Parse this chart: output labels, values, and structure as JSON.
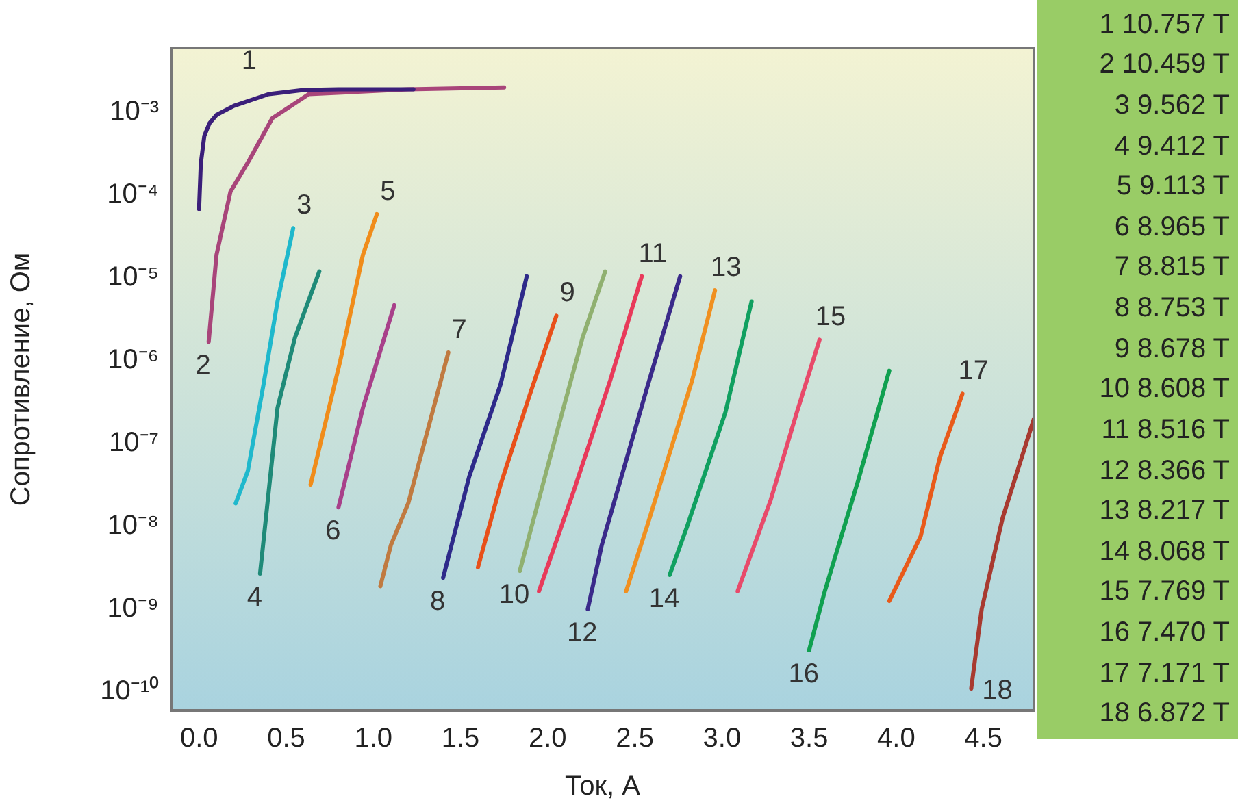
{
  "chart_data": {
    "type": "line",
    "xlabel": "Ток, А",
    "ylabel": "Сопротивление, Ом",
    "log": "y",
    "grid": false,
    "legend": false,
    "xlim": [
      -0.16,
      4.79
    ],
    "xticks": [
      {
        "value": 0,
        "label": "0.0"
      },
      0.5,
      {
        "value": 1,
        "label": "1.0"
      },
      1.5,
      {
        "value": 2,
        "label": "2.0"
      },
      2.5,
      {
        "value": 3,
        "label": "3.0"
      },
      3.5,
      {
        "value": 4,
        "label": "4.0"
      },
      4.5
    ],
    "ylim": [
      6e-11,
      0.006
    ],
    "yticks": [
      {
        "value": 1e-10,
        "label": "10⁻¹⁰"
      },
      {
        "value": 1e-09,
        "label": "10⁻⁹"
      },
      {
        "value": 1e-08,
        "label": "10⁻⁸"
      },
      {
        "value": 1e-07,
        "label": "10⁻⁷"
      },
      {
        "value": 1e-06,
        "label": "10⁻⁶"
      },
      {
        "value": 1e-05,
        "label": "10⁻⁵"
      },
      {
        "value": 0.0001,
        "label": "10⁻⁴"
      },
      {
        "value": 0.001,
        "label": "10⁻³"
      }
    ],
    "series": [
      {
        "name": "1",
        "color": "#3b1f7a",
        "x": [
          0,
          0.01,
          0.03,
          0.06,
          0.1,
          0.2,
          0.4,
          0.6,
          0.8,
          1.0,
          1.23
        ],
        "values": [
          6.8e-05,
          0.00024,
          0.00052,
          0.00074,
          0.00093,
          0.0012,
          0.00166,
          0.00186,
          0.0019,
          0.0019,
          0.0019
        ]
      },
      {
        "name": "2",
        "color": "#a8457a",
        "x": [
          0.055,
          0.1,
          0.18,
          0.29,
          0.42,
          0.63,
          1.2,
          1.75
        ],
        "values": [
          1.7e-06,
          1.9e-05,
          0.00011,
          0.00027,
          0.00085,
          0.00166,
          0.0019,
          0.002
        ]
      },
      {
        "name": "3",
        "color": "#1fb8cc",
        "x": [
          0.21,
          0.28,
          0.37,
          0.45,
          0.54
        ],
        "values": [
          1.9e-08,
          4.7e-08,
          5.2e-07,
          5.2e-06,
          4e-05
        ]
      },
      {
        "name": "4",
        "color": "#1f8a78",
        "x": [
          0.35,
          0.45,
          0.55,
          0.69
        ],
        "values": [
          2.7e-09,
          2.7e-07,
          1.9e-06,
          1.2e-05
        ]
      },
      {
        "name": "5",
        "color": "#f08c1a",
        "x": [
          0.64,
          0.81,
          0.94,
          1.02
        ],
        "values": [
          3.2e-08,
          1e-06,
          1.9e-05,
          5.9e-05
        ]
      },
      {
        "name": "6",
        "color": "#a8408a",
        "x": [
          0.8,
          0.94,
          1.12
        ],
        "values": [
          1.7e-08,
          2.7e-07,
          4.7e-06
        ]
      },
      {
        "name": "7",
        "color": "#c07a40",
        "x": [
          1.04,
          1.1,
          1.2,
          1.43
        ],
        "values": [
          1.9e-09,
          5.9e-09,
          1.9e-08,
          1.26e-06
        ]
      },
      {
        "name": "8",
        "color": "#2e2a8a",
        "x": [
          1.4,
          1.55,
          1.73,
          1.88
        ],
        "values": [
          2.4e-09,
          4e-08,
          5.2e-07,
          1.05e-05
        ]
      },
      {
        "name": "9",
        "color": "#e8501a",
        "x": [
          1.6,
          1.73,
          1.89,
          2.05
        ],
        "values": [
          3.2e-09,
          3.2e-08,
          3.5e-07,
          3.5e-06
        ]
      },
      {
        "name": "10",
        "color": "#90b070",
        "x": [
          1.84,
          2.02,
          2.2,
          2.33
        ],
        "values": [
          2.9e-09,
          7.6e-08,
          1.9e-06,
          1.2e-05
        ]
      },
      {
        "name": "11",
        "color": "#e83a5a",
        "x": [
          1.95,
          2.15,
          2.36,
          2.54
        ],
        "values": [
          1.65e-09,
          2.7e-08,
          5.9e-07,
          1.05e-05
        ]
      },
      {
        "name": "12",
        "color": "#3a2a8a",
        "x": [
          2.23,
          2.31,
          2.57,
          2.76
        ],
        "values": [
          1e-09,
          5.9e-09,
          4.7e-07,
          1.05e-05
        ]
      },
      {
        "name": "13",
        "color": "#f09020",
        "x": [
          2.45,
          2.57,
          2.83,
          2.96
        ],
        "values": [
          1.65e-09,
          1e-08,
          5.9e-07,
          7.1e-06
        ]
      },
      {
        "name": "14",
        "color": "#10a060",
        "x": [
          2.7,
          2.8,
          3.02,
          3.17
        ],
        "values": [
          2.6e-09,
          1e-08,
          2.4e-07,
          5.2e-06
        ]
      },
      {
        "name": "15",
        "color": "#e84a6a",
        "x": [
          3.09,
          3.28,
          3.43,
          3.56
        ],
        "values": [
          1.65e-09,
          2.1e-08,
          2.4e-07,
          1.8e-06
        ]
      },
      {
        "name": "16",
        "color": "#10a050",
        "x": [
          3.5,
          3.59,
          3.78,
          3.96
        ],
        "values": [
          3.2e-10,
          1.65e-09,
          3.5e-08,
          7.6e-07
        ]
      },
      {
        "name": "17",
        "color": "#e85a1a",
        "x": [
          3.96,
          4.14,
          4.25,
          4.38
        ],
        "values": [
          1.26e-09,
          7.6e-09,
          6.8e-08,
          4e-07
        ]
      },
      {
        "name": "18",
        "color": "#a83a30",
        "x": [
          4.43,
          4.49,
          4.61,
          4.79
        ],
        "values": [
          1.1e-10,
          1e-09,
          1.26e-08,
          2e-07
        ]
      }
    ],
    "annotations": [
      "1 10.757 T",
      "2 10.459 T",
      "3 9.562 T",
      "4 9.412 T",
      "5 9.113 T",
      "6 8.965 T",
      "7 8.815 T",
      "8 8.753 T",
      "9 8.678 T",
      "10 8.608 T",
      "11 8.516 T",
      "12 8.366 T",
      "13 8.217 T",
      "14 8.068 T",
      "15 7.769 T",
      "16 7.470 T",
      "17 7.171 T",
      "18 6.872 T"
    ]
  }
}
